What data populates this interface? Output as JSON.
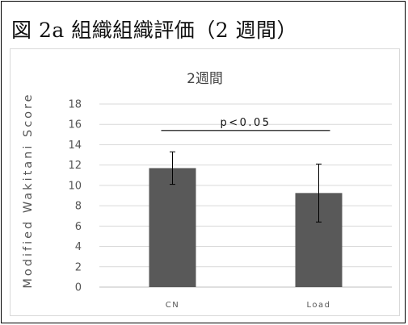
{
  "figure": {
    "title": "図 2a 組織組織評価（2 週間）"
  },
  "colors": {
    "bar": "#595959",
    "grid": "#d9d9d9",
    "axis": "#bfbfbf",
    "text": "#555555"
  },
  "chart_data": {
    "type": "bar",
    "title": "2週間",
    "ylabel": "Modified Wakitani Score",
    "xlabel": "",
    "categories": [
      "CN",
      "Load"
    ],
    "values": [
      11.7,
      9.25
    ],
    "errors": [
      1.6,
      2.85
    ],
    "ylim": [
      0,
      18
    ],
    "yticks": [
      0,
      2,
      4,
      6,
      8,
      10,
      12,
      14,
      16,
      18
    ],
    "grid": true,
    "legend": "none",
    "annotation": {
      "text": "p<0.05",
      "between": [
        "CN",
        "Load"
      ]
    }
  }
}
